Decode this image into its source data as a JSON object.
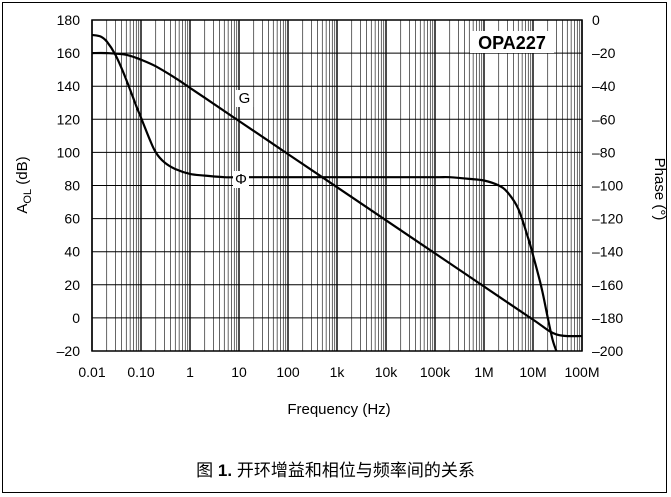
{
  "chart_data": {
    "type": "line",
    "title": "OPA227",
    "xlabel": "Frequency (Hz)",
    "ylabel_left_main": "A",
    "ylabel_left_sub": "OL",
    "ylabel_left_unit": "(dB)",
    "ylabel_right": "Phase (°)",
    "x_scale": "log",
    "xlim": [
      0.01,
      100000000
    ],
    "ylim_left": [
      -20,
      180
    ],
    "ylim_right": [
      -200,
      0
    ],
    "grid": true,
    "x_ticks": [
      {
        "value": 0.01,
        "label": "0.01"
      },
      {
        "value": 0.1,
        "label": "0.10"
      },
      {
        "value": 1,
        "label": "1"
      },
      {
        "value": 10,
        "label": "10"
      },
      {
        "value": 100,
        "label": "100"
      },
      {
        "value": 1000,
        "label": "1k"
      },
      {
        "value": 10000,
        "label": "10k"
      },
      {
        "value": 100000,
        "label": "100k"
      },
      {
        "value": 1000000,
        "label": "1M"
      },
      {
        "value": 10000000,
        "label": "10M"
      },
      {
        "value": 100000000,
        "label": "100M"
      }
    ],
    "y_ticks_left": [
      "180",
      "160",
      "140",
      "120",
      "100",
      "80",
      "60",
      "40",
      "20",
      "0",
      "–20"
    ],
    "y_ticks_right": [
      "0",
      "–20",
      "–40",
      "–60",
      "–80",
      "–100",
      "–120",
      "–140",
      "–160",
      "–180",
      "–200"
    ],
    "series": [
      {
        "name": "G",
        "axis": "left",
        "x": [
          0.01,
          0.02,
          0.05,
          0.1,
          0.2,
          0.5,
          1,
          2,
          10,
          100,
          1000,
          10000,
          100000,
          1000000,
          10000000,
          30000000,
          100000000
        ],
        "y": [
          160,
          160,
          159,
          156,
          152,
          145,
          139,
          133,
          119,
          99,
          79,
          59,
          39,
          19,
          -1,
          -10,
          -11
        ]
      },
      {
        "name": "Φ",
        "axis": "right",
        "x": [
          0.01,
          0.015,
          0.02,
          0.03,
          0.05,
          0.08,
          0.1,
          0.15,
          0.2,
          0.3,
          0.5,
          1,
          2,
          5,
          10,
          100,
          1000,
          10000,
          100000,
          200000,
          500000,
          1000000,
          2000000,
          3000000,
          5000000,
          8000000,
          10000000,
          15000000,
          20000000,
          25000000,
          30000000
        ],
        "y": [
          -9,
          -10,
          -13,
          -21,
          -36,
          -52,
          -59,
          -72,
          -80,
          -86,
          -90,
          -93,
          -94,
          -95,
          -95,
          -95,
          -95,
          -95,
          -95,
          -95,
          -96,
          -97,
          -100,
          -104,
          -114,
          -132,
          -142,
          -162,
          -180,
          -193,
          -200
        ]
      }
    ]
  },
  "caption": {
    "prefix": "图 ",
    "number": "1.",
    "text": " 开环增益和相位与频率间的关系"
  }
}
